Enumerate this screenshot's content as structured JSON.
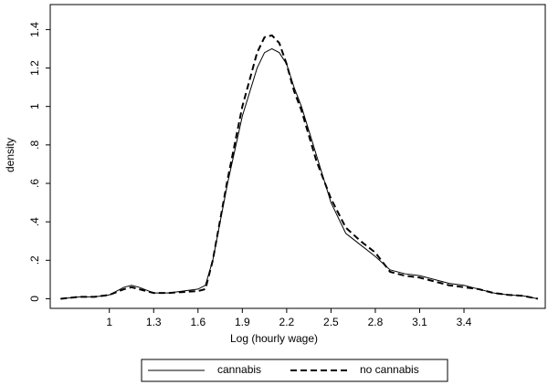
{
  "chart_data": {
    "type": "line",
    "xlabel": "Log (hourly wage)",
    "ylabel": "density",
    "x": [
      0.67,
      0.8,
      0.9,
      1.0,
      1.1,
      1.15,
      1.2,
      1.3,
      1.4,
      1.5,
      1.6,
      1.65,
      1.7,
      1.8,
      1.9,
      2.0,
      2.05,
      2.1,
      2.15,
      2.2,
      2.25,
      2.3,
      2.4,
      2.5,
      2.6,
      2.7,
      2.8,
      2.9,
      3.0,
      3.1,
      3.2,
      3.3,
      3.4,
      3.5,
      3.6,
      3.7,
      3.8,
      3.9
    ],
    "series": [
      {
        "name": "cannabis",
        "color": "#000000",
        "linestyle": "solid",
        "values": [
          0.0,
          0.01,
          0.01,
          0.02,
          0.06,
          0.07,
          0.06,
          0.03,
          0.03,
          0.04,
          0.05,
          0.07,
          0.2,
          0.6,
          0.95,
          1.2,
          1.28,
          1.3,
          1.28,
          1.22,
          1.1,
          1.0,
          0.75,
          0.5,
          0.34,
          0.28,
          0.22,
          0.15,
          0.13,
          0.12,
          0.1,
          0.08,
          0.07,
          0.05,
          0.03,
          0.02,
          0.015,
          0.0
        ]
      },
      {
        "name": "no cannabis",
        "color": "#000000",
        "linestyle": "dashed",
        "values": [
          0.0,
          0.01,
          0.01,
          0.02,
          0.05,
          0.06,
          0.05,
          0.03,
          0.03,
          0.035,
          0.04,
          0.05,
          0.2,
          0.62,
          1.0,
          1.28,
          1.36,
          1.37,
          1.33,
          1.22,
          1.08,
          0.98,
          0.72,
          0.52,
          0.37,
          0.3,
          0.24,
          0.14,
          0.12,
          0.11,
          0.09,
          0.07,
          0.06,
          0.05,
          0.03,
          0.02,
          0.015,
          0.0
        ]
      }
    ],
    "xlim": [
      0.6,
      3.95
    ],
    "ylim": [
      -0.05,
      1.53
    ],
    "xticks": [
      1,
      1.3,
      1.6,
      1.9,
      2.2,
      2.5,
      2.8,
      3.1,
      3.4
    ],
    "yticks": [
      0,
      {
        "value": 0.2,
        "label": ".2"
      },
      {
        "value": 0.4,
        "label": ".4"
      },
      {
        "value": 0.6,
        "label": ".6"
      },
      {
        "value": 0.8,
        "label": ".8"
      },
      1,
      1.2,
      1.4
    ],
    "legend": "bottom"
  }
}
